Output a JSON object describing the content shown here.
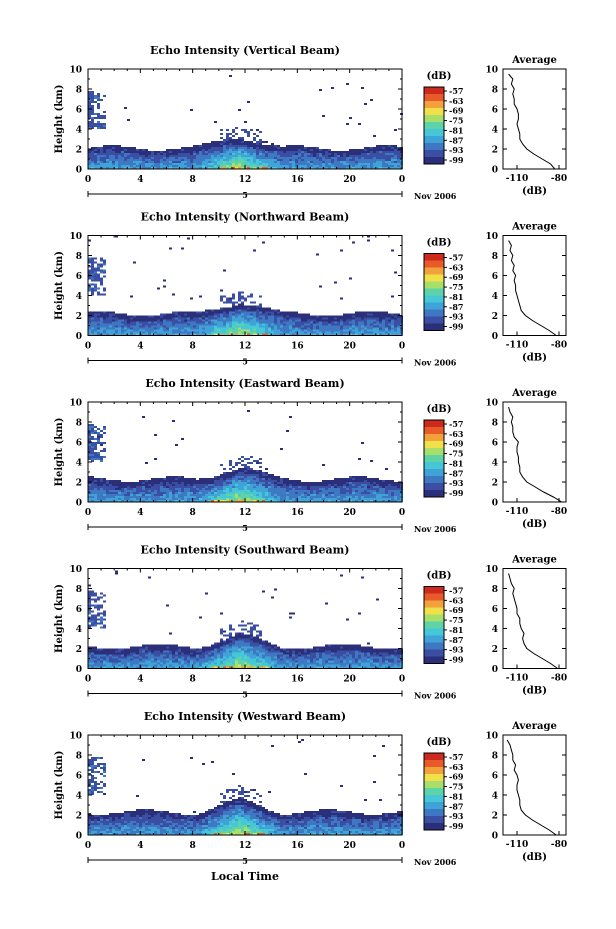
{
  "colors": {
    "scale": [
      "#2b2f7a",
      "#3a4ea3",
      "#3f78c2",
      "#3fa3d8",
      "#46c7d8",
      "#5fd3a8",
      "#a8df6a",
      "#f0e04a",
      "#f3a13a",
      "#e85a2a",
      "#cc2a1c"
    ]
  },
  "common": {
    "x_ticks": [
      "0",
      "4",
      "8",
      "12",
      "16",
      "20",
      "0"
    ],
    "y_ticks": [
      "0",
      "2",
      "4",
      "6",
      "8",
      "10"
    ],
    "ylabel": "Height (km)",
    "date_tick": "5",
    "date_label": "Nov 2006",
    "colorbar_unit": "(dB)",
    "colorbar_ticks": [
      "-57",
      "-63",
      "-69",
      "-75",
      "-81",
      "-87",
      "-93",
      "-99"
    ],
    "avg_title": "Average",
    "avg_xticks": [
      "-110",
      "-80"
    ],
    "avg_xlabel": "(dB)",
    "xlabel": "Local Time"
  },
  "chart_data": [
    {
      "type": "heatmap",
      "title": "Echo Intensity (Vertical Beam)",
      "xlabel": "",
      "ylabel": "Height (km)",
      "xlim": [
        0,
        24
      ],
      "ylim": [
        0,
        10
      ],
      "clim": [
        -99,
        -57
      ],
      "dense_layer_top_km": 2.2,
      "average_profile": {
        "height_km": [
          0,
          0.5,
          1,
          1.5,
          2,
          2.5,
          3,
          3.5,
          4,
          4.5,
          5,
          5.5,
          6,
          6.5,
          7,
          7.5,
          8,
          8.5,
          9,
          9.5
        ],
        "db": [
          -83,
          -86,
          -92,
          -98,
          -103,
          -106,
          -108,
          -108,
          -109,
          -110,
          -109,
          -109,
          -110,
          -112,
          -112,
          -113,
          -112,
          -114,
          -113,
          -116
        ]
      }
    },
    {
      "type": "heatmap",
      "title": "Echo Intensity (Northward Beam)",
      "xlabel": "",
      "ylabel": "Height (km)",
      "xlim": [
        0,
        24
      ],
      "ylim": [
        0,
        10
      ],
      "clim": [
        -99,
        -57
      ],
      "dense_layer_top_km": 2.3,
      "average_profile": {
        "height_km": [
          0,
          0.5,
          1,
          1.5,
          2,
          2.5,
          3,
          3.5,
          4,
          4.5,
          5,
          5.5,
          6,
          6.5,
          7,
          7.5,
          8,
          8.5,
          9,
          9.5
        ],
        "db": [
          -82,
          -87,
          -93,
          -99,
          -104,
          -107,
          -108,
          -109,
          -110,
          -111,
          -111,
          -112,
          -111,
          -113,
          -112,
          -114,
          -113,
          -115,
          -114,
          -116
        ]
      }
    },
    {
      "type": "heatmap",
      "title": "Echo Intensity (Eastward Beam)",
      "xlabel": "",
      "ylabel": "Height (km)",
      "xlim": [
        0,
        24
      ],
      "ylim": [
        0,
        10
      ],
      "clim": [
        -99,
        -57
      ],
      "dense_layer_top_km": 2.4,
      "average_profile": {
        "height_km": [
          0,
          0.5,
          1,
          1.5,
          2,
          2.5,
          3,
          3.5,
          4,
          4.5,
          5,
          5.5,
          6,
          6.5,
          7,
          7.5,
          8,
          8.5,
          9,
          9.5
        ],
        "db": [
          -78,
          -84,
          -91,
          -97,
          -103,
          -106,
          -108,
          -108,
          -109,
          -109,
          -110,
          -110,
          -109,
          -112,
          -113,
          -113,
          -114,
          -113,
          -115,
          -116
        ]
      }
    },
    {
      "type": "heatmap",
      "title": "Echo Intensity (Southward Beam)",
      "xlabel": "",
      "ylabel": "Height (km)",
      "xlim": [
        0,
        24
      ],
      "ylim": [
        0,
        10
      ],
      "clim": [
        -99,
        -57
      ],
      "dense_layer_top_km": 2.3,
      "average_profile": {
        "height_km": [
          0,
          0.5,
          1,
          1.5,
          2,
          2.5,
          3,
          3.5,
          4,
          4.5,
          5,
          5.5,
          6,
          6.5,
          7,
          7.5,
          8,
          8.5,
          9,
          9.5
        ],
        "db": [
          -81,
          -86,
          -92,
          -98,
          -103,
          -105,
          -106,
          -105,
          -107,
          -108,
          -108,
          -110,
          -110,
          -111,
          -112,
          -113,
          -112,
          -114,
          -115,
          -116
        ]
      }
    },
    {
      "type": "heatmap",
      "title": "Echo Intensity (Westward Beam)",
      "xlabel": "Local Time",
      "ylabel": "Height (km)",
      "xlim": [
        0,
        24
      ],
      "ylim": [
        0,
        10
      ],
      "clim": [
        -99,
        -57
      ],
      "dense_layer_top_km": 2.4,
      "average_profile": {
        "height_km": [
          0,
          0.5,
          1,
          1.5,
          2,
          2.5,
          3,
          3.5,
          4,
          4.5,
          5,
          5.5,
          6,
          6.5,
          7,
          7.5,
          8,
          8.5,
          9,
          9.5
        ],
        "db": [
          -82,
          -87,
          -93,
          -99,
          -104,
          -107,
          -108,
          -108,
          -109,
          -110,
          -110,
          -109,
          -110,
          -112,
          -111,
          -113,
          -113,
          -114,
          -115,
          -117
        ]
      }
    }
  ]
}
